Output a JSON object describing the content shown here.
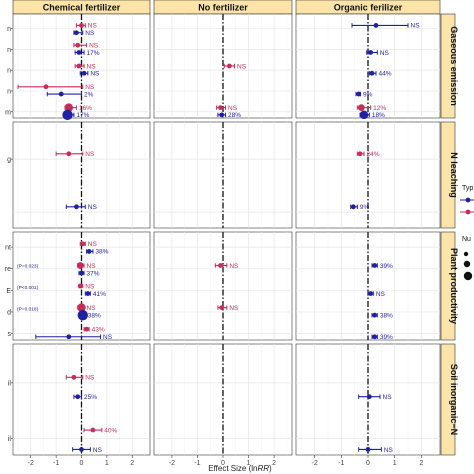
{
  "chart_data": {
    "type": "forest",
    "xlabel_prefix": "Effect Size (ln",
    "xlabel_italic": "RR",
    "xlabel_suffix": ")",
    "xlim": [
      -2.7,
      2.7
    ],
    "x_ticks": [
      -2,
      -1,
      0,
      1,
      2
    ],
    "x_tick_labels": [
      "-2",
      "-1",
      "0",
      "1",
      "2"
    ],
    "reference_line": 0,
    "grid": true,
    "legend_placement": "right (cropped)",
    "legend_fragments": [
      "Typ",
      "Nu"
    ],
    "columns": [
      "Chemical fertilizer",
      "No fertilizer",
      "Organic ferilizer"
    ],
    "rows": [
      {
        "name": "Gaseous emission",
        "n_items": 5
      },
      {
        "name": "N leaching",
        "n_items": 2
      },
      {
        "name": "Plant productivity",
        "n_items": 5
      },
      {
        "name": "Soil inorganic−N",
        "n_items": 2
      }
    ],
    "y_label_fragments": [
      {
        "row": 0,
        "item": 0,
        "text": "n"
      },
      {
        "row": 0,
        "item": 1,
        "text": "n"
      },
      {
        "row": 0,
        "item": 2,
        "text": "n"
      },
      {
        "row": 0,
        "item": 3,
        "text": "n"
      },
      {
        "row": 0,
        "item": 4,
        "text": "m"
      },
      {
        "row": 1,
        "item": 0,
        "text": "g"
      },
      {
        "row": 2,
        "item": 0,
        "text": "nt"
      },
      {
        "row": 2,
        "item": 1,
        "text": "re"
      },
      {
        "row": 2,
        "item": 2,
        "text": "E"
      },
      {
        "row": 2,
        "item": 3,
        "text": "d"
      },
      {
        "row": 2,
        "item": 4,
        "text": "s"
      },
      {
        "row": 3,
        "item": 0,
        "text": "il"
      },
      {
        "row": 3,
        "item": 1,
        "text": "il"
      }
    ],
    "type_colors": {
      "type_a": "#1f1fa8",
      "type_b": "#cc2a5a"
    },
    "strip_fill": "#fce4a8",
    "panel_grid_color": "#e6e6e6",
    "p_annotations": [
      {
        "row": 2,
        "item": 1,
        "text": "(P=0.023)"
      },
      {
        "row": 2,
        "item": 2,
        "text": "(P<0.001)"
      },
      {
        "row": 2,
        "item": 3,
        "text": "(P=0.018)"
      }
    ],
    "points": [
      {
        "row": 0,
        "col": 0,
        "pos": 0.55,
        "type": "type_b",
        "x": 0.0,
        "lo": -0.2,
        "hi": 0.15,
        "size": 1,
        "label": "NS"
      },
      {
        "row": 0,
        "col": 0,
        "pos": 0.9,
        "type": "type_a",
        "x": -0.2,
        "lo": -0.3,
        "hi": 0.05,
        "size": 1,
        "label": "NS"
      },
      {
        "row": 0,
        "col": 0,
        "pos": 1.5,
        "type": "type_b",
        "x": -0.15,
        "lo": -0.3,
        "hi": 0.2,
        "size": 1,
        "label": "NS"
      },
      {
        "row": 0,
        "col": 0,
        "pos": 1.85,
        "type": "type_a",
        "x": -0.1,
        "lo": -0.25,
        "hi": 0.1,
        "size": 1,
        "label": "17%"
      },
      {
        "row": 0,
        "col": 0,
        "pos": 2.5,
        "type": "type_b",
        "x": -0.1,
        "lo": -0.25,
        "hi": 0.1,
        "size": 1,
        "label": "NS"
      },
      {
        "row": 0,
        "col": 0,
        "pos": 2.85,
        "type": "type_a",
        "x": 0.1,
        "lo": -0.05,
        "hi": 0.25,
        "size": 1,
        "label": "NS"
      },
      {
        "row": 0,
        "col": 0,
        "pos": 3.5,
        "type": "type_b",
        "x": -1.4,
        "lo": -2.5,
        "hi": 0.05,
        "size": 1,
        "label": "NS"
      },
      {
        "row": 0,
        "col": 0,
        "pos": 3.85,
        "type": "type_a",
        "x": -0.8,
        "lo": -1.35,
        "hi": 0.0,
        "size": 1,
        "label": "2%"
      },
      {
        "row": 0,
        "col": 0,
        "pos": 4.5,
        "type": "type_b",
        "x": -0.5,
        "lo": -0.65,
        "hi": -0.2,
        "size": 3,
        "label": "16%"
      },
      {
        "row": 0,
        "col": 0,
        "pos": 4.85,
        "type": "type_a",
        "x": -0.55,
        "lo": -0.7,
        "hi": -0.3,
        "size": 4,
        "label": "17%"
      },
      {
        "row": 0,
        "col": 1,
        "pos": 2.5,
        "type": "type_b",
        "x": 0.25,
        "lo": 0.05,
        "hi": 0.45,
        "size": 1,
        "label": "NS"
      },
      {
        "row": 0,
        "col": 1,
        "pos": 4.5,
        "type": "type_b",
        "x": -0.1,
        "lo": -0.25,
        "hi": 0.1,
        "size": 1,
        "label": "NS"
      },
      {
        "row": 0,
        "col": 1,
        "pos": 4.85,
        "type": "type_a",
        "x": -0.05,
        "lo": -0.2,
        "hi": 0.1,
        "size": 1,
        "label": "28%"
      },
      {
        "row": 0,
        "col": 2,
        "pos": 0.55,
        "type": "type_a",
        "x": 0.3,
        "lo": -0.6,
        "hi": 1.5,
        "size": 1,
        "label": "NS"
      },
      {
        "row": 0,
        "col": 2,
        "pos": 1.85,
        "type": "type_a",
        "x": 0.1,
        "lo": -0.05,
        "hi": 0.35,
        "size": 1,
        "label": "NS"
      },
      {
        "row": 0,
        "col": 2,
        "pos": 2.85,
        "type": "type_a",
        "x": 0.15,
        "lo": 0.05,
        "hi": 0.3,
        "size": 1,
        "label": "44%"
      },
      {
        "row": 0,
        "col": 2,
        "pos": 3.85,
        "type": "type_a",
        "x": -0.35,
        "lo": -0.45,
        "hi": -0.28,
        "size": 1,
        "label": "9%"
      },
      {
        "row": 0,
        "col": 2,
        "pos": 4.5,
        "type": "type_b",
        "x": -0.25,
        "lo": -0.4,
        "hi": 0.1,
        "size": 2,
        "label": "12%"
      },
      {
        "row": 0,
        "col": 2,
        "pos": 4.85,
        "type": "type_a",
        "x": -0.15,
        "lo": -0.3,
        "hi": 0.05,
        "size": 3,
        "label": "18%"
      },
      {
        "row": 1,
        "col": 0,
        "pos": 0.6,
        "type": "type_b",
        "x": -0.5,
        "lo": -1.0,
        "hi": 0.05,
        "size": 1,
        "label": "NS"
      },
      {
        "row": 1,
        "col": 0,
        "pos": 1.6,
        "type": "type_a",
        "x": -0.2,
        "lo": -0.6,
        "hi": 0.15,
        "size": 1,
        "label": "NS"
      },
      {
        "row": 1,
        "col": 2,
        "pos": 0.6,
        "type": "type_b",
        "x": -0.3,
        "lo": -0.4,
        "hi": -0.15,
        "size": 1,
        "label": "24%"
      },
      {
        "row": 1,
        "col": 2,
        "pos": 1.6,
        "type": "type_a",
        "x": -0.55,
        "lo": -0.65,
        "hi": -0.4,
        "size": 1,
        "label": "9%"
      },
      {
        "row": 2,
        "col": 0,
        "pos": 0.55,
        "type": "type_b",
        "x": 0.05,
        "lo": -0.05,
        "hi": 0.15,
        "size": 1,
        "label": "NS"
      },
      {
        "row": 2,
        "col": 0,
        "pos": 0.9,
        "type": "type_a",
        "x": 0.3,
        "lo": 0.2,
        "hi": 0.45,
        "size": 1,
        "label": "38%"
      },
      {
        "row": 2,
        "col": 0,
        "pos": 1.55,
        "type": "type_b",
        "x": -0.05,
        "lo": -0.15,
        "hi": 0.1,
        "size": 2,
        "label": "NS"
      },
      {
        "row": 2,
        "col": 0,
        "pos": 1.9,
        "type": "type_a",
        "x": 0.0,
        "lo": -0.1,
        "hi": 0.1,
        "size": 1,
        "label": "37%"
      },
      {
        "row": 2,
        "col": 0,
        "pos": 2.5,
        "type": "type_b",
        "x": -0.05,
        "lo": -0.1,
        "hi": 0.05,
        "size": 1,
        "label": "NS"
      },
      {
        "row": 2,
        "col": 0,
        "pos": 2.85,
        "type": "type_a",
        "x": 0.25,
        "lo": 0.15,
        "hi": 0.35,
        "size": 1,
        "label": "41%"
      },
      {
        "row": 2,
        "col": 0,
        "pos": 3.5,
        "type": "type_b",
        "x": 0.0,
        "lo": -0.15,
        "hi": 0.1,
        "size": 3,
        "label": "NS"
      },
      {
        "row": 2,
        "col": 0,
        "pos": 3.85,
        "type": "type_a",
        "x": 0.05,
        "lo": -0.05,
        "hi": 0.15,
        "size": 4,
        "label": "38%"
      },
      {
        "row": 2,
        "col": 0,
        "pos": 4.5,
        "type": "type_b",
        "x": 0.2,
        "lo": 0.1,
        "hi": 0.3,
        "size": 1,
        "label": "43%"
      },
      {
        "row": 2,
        "col": 0,
        "pos": 4.85,
        "type": "type_a",
        "x": -0.5,
        "lo": -1.8,
        "hi": 0.75,
        "size": 1,
        "label": "NS"
      },
      {
        "row": 2,
        "col": 1,
        "pos": 1.55,
        "type": "type_b",
        "x": -0.1,
        "lo": -0.3,
        "hi": 0.15,
        "size": 1,
        "label": "NS"
      },
      {
        "row": 2,
        "col": 1,
        "pos": 3.5,
        "type": "type_b",
        "x": -0.05,
        "lo": -0.2,
        "hi": 0.15,
        "size": 1,
        "label": "NS"
      },
      {
        "row": 2,
        "col": 2,
        "pos": 1.55,
        "type": "type_a",
        "x": 0.25,
        "lo": 0.15,
        "hi": 0.35,
        "size": 1,
        "label": "39%"
      },
      {
        "row": 2,
        "col": 2,
        "pos": 2.85,
        "type": "type_a",
        "x": 0.1,
        "lo": 0.0,
        "hi": 0.2,
        "size": 1,
        "label": "NS"
      },
      {
        "row": 2,
        "col": 2,
        "pos": 3.85,
        "type": "type_a",
        "x": 0.25,
        "lo": 0.15,
        "hi": 0.35,
        "size": 1,
        "label": "38%"
      },
      {
        "row": 2,
        "col": 2,
        "pos": 4.85,
        "type": "type_a",
        "x": 0.25,
        "lo": 0.15,
        "hi": 0.35,
        "size": 1,
        "label": "39%"
      },
      {
        "row": 3,
        "col": 0,
        "pos": 0.6,
        "type": "type_b",
        "x": -0.3,
        "lo": -0.6,
        "hi": 0.05,
        "size": 1,
        "label": "NS"
      },
      {
        "row": 3,
        "col": 0,
        "pos": 0.95,
        "type": "type_a",
        "x": -0.15,
        "lo": -0.3,
        "hi": 0.0,
        "size": 1,
        "label": "25%"
      },
      {
        "row": 3,
        "col": 0,
        "pos": 1.55,
        "type": "type_b",
        "x": 0.45,
        "lo": 0.1,
        "hi": 0.8,
        "size": 1,
        "label": "40%"
      },
      {
        "row": 3,
        "col": 0,
        "pos": 1.9,
        "type": "type_a",
        "x": 0.0,
        "lo": -0.35,
        "hi": 0.35,
        "size": 1,
        "label": "NS"
      },
      {
        "row": 3,
        "col": 2,
        "pos": 0.95,
        "type": "type_a",
        "x": 0.05,
        "lo": -0.35,
        "hi": 0.45,
        "size": 1,
        "label": "NS"
      },
      {
        "row": 3,
        "col": 2,
        "pos": 1.9,
        "type": "type_a",
        "x": 0.0,
        "lo": -0.35,
        "hi": 0.5,
        "size": 1,
        "label": "NS"
      }
    ]
  }
}
